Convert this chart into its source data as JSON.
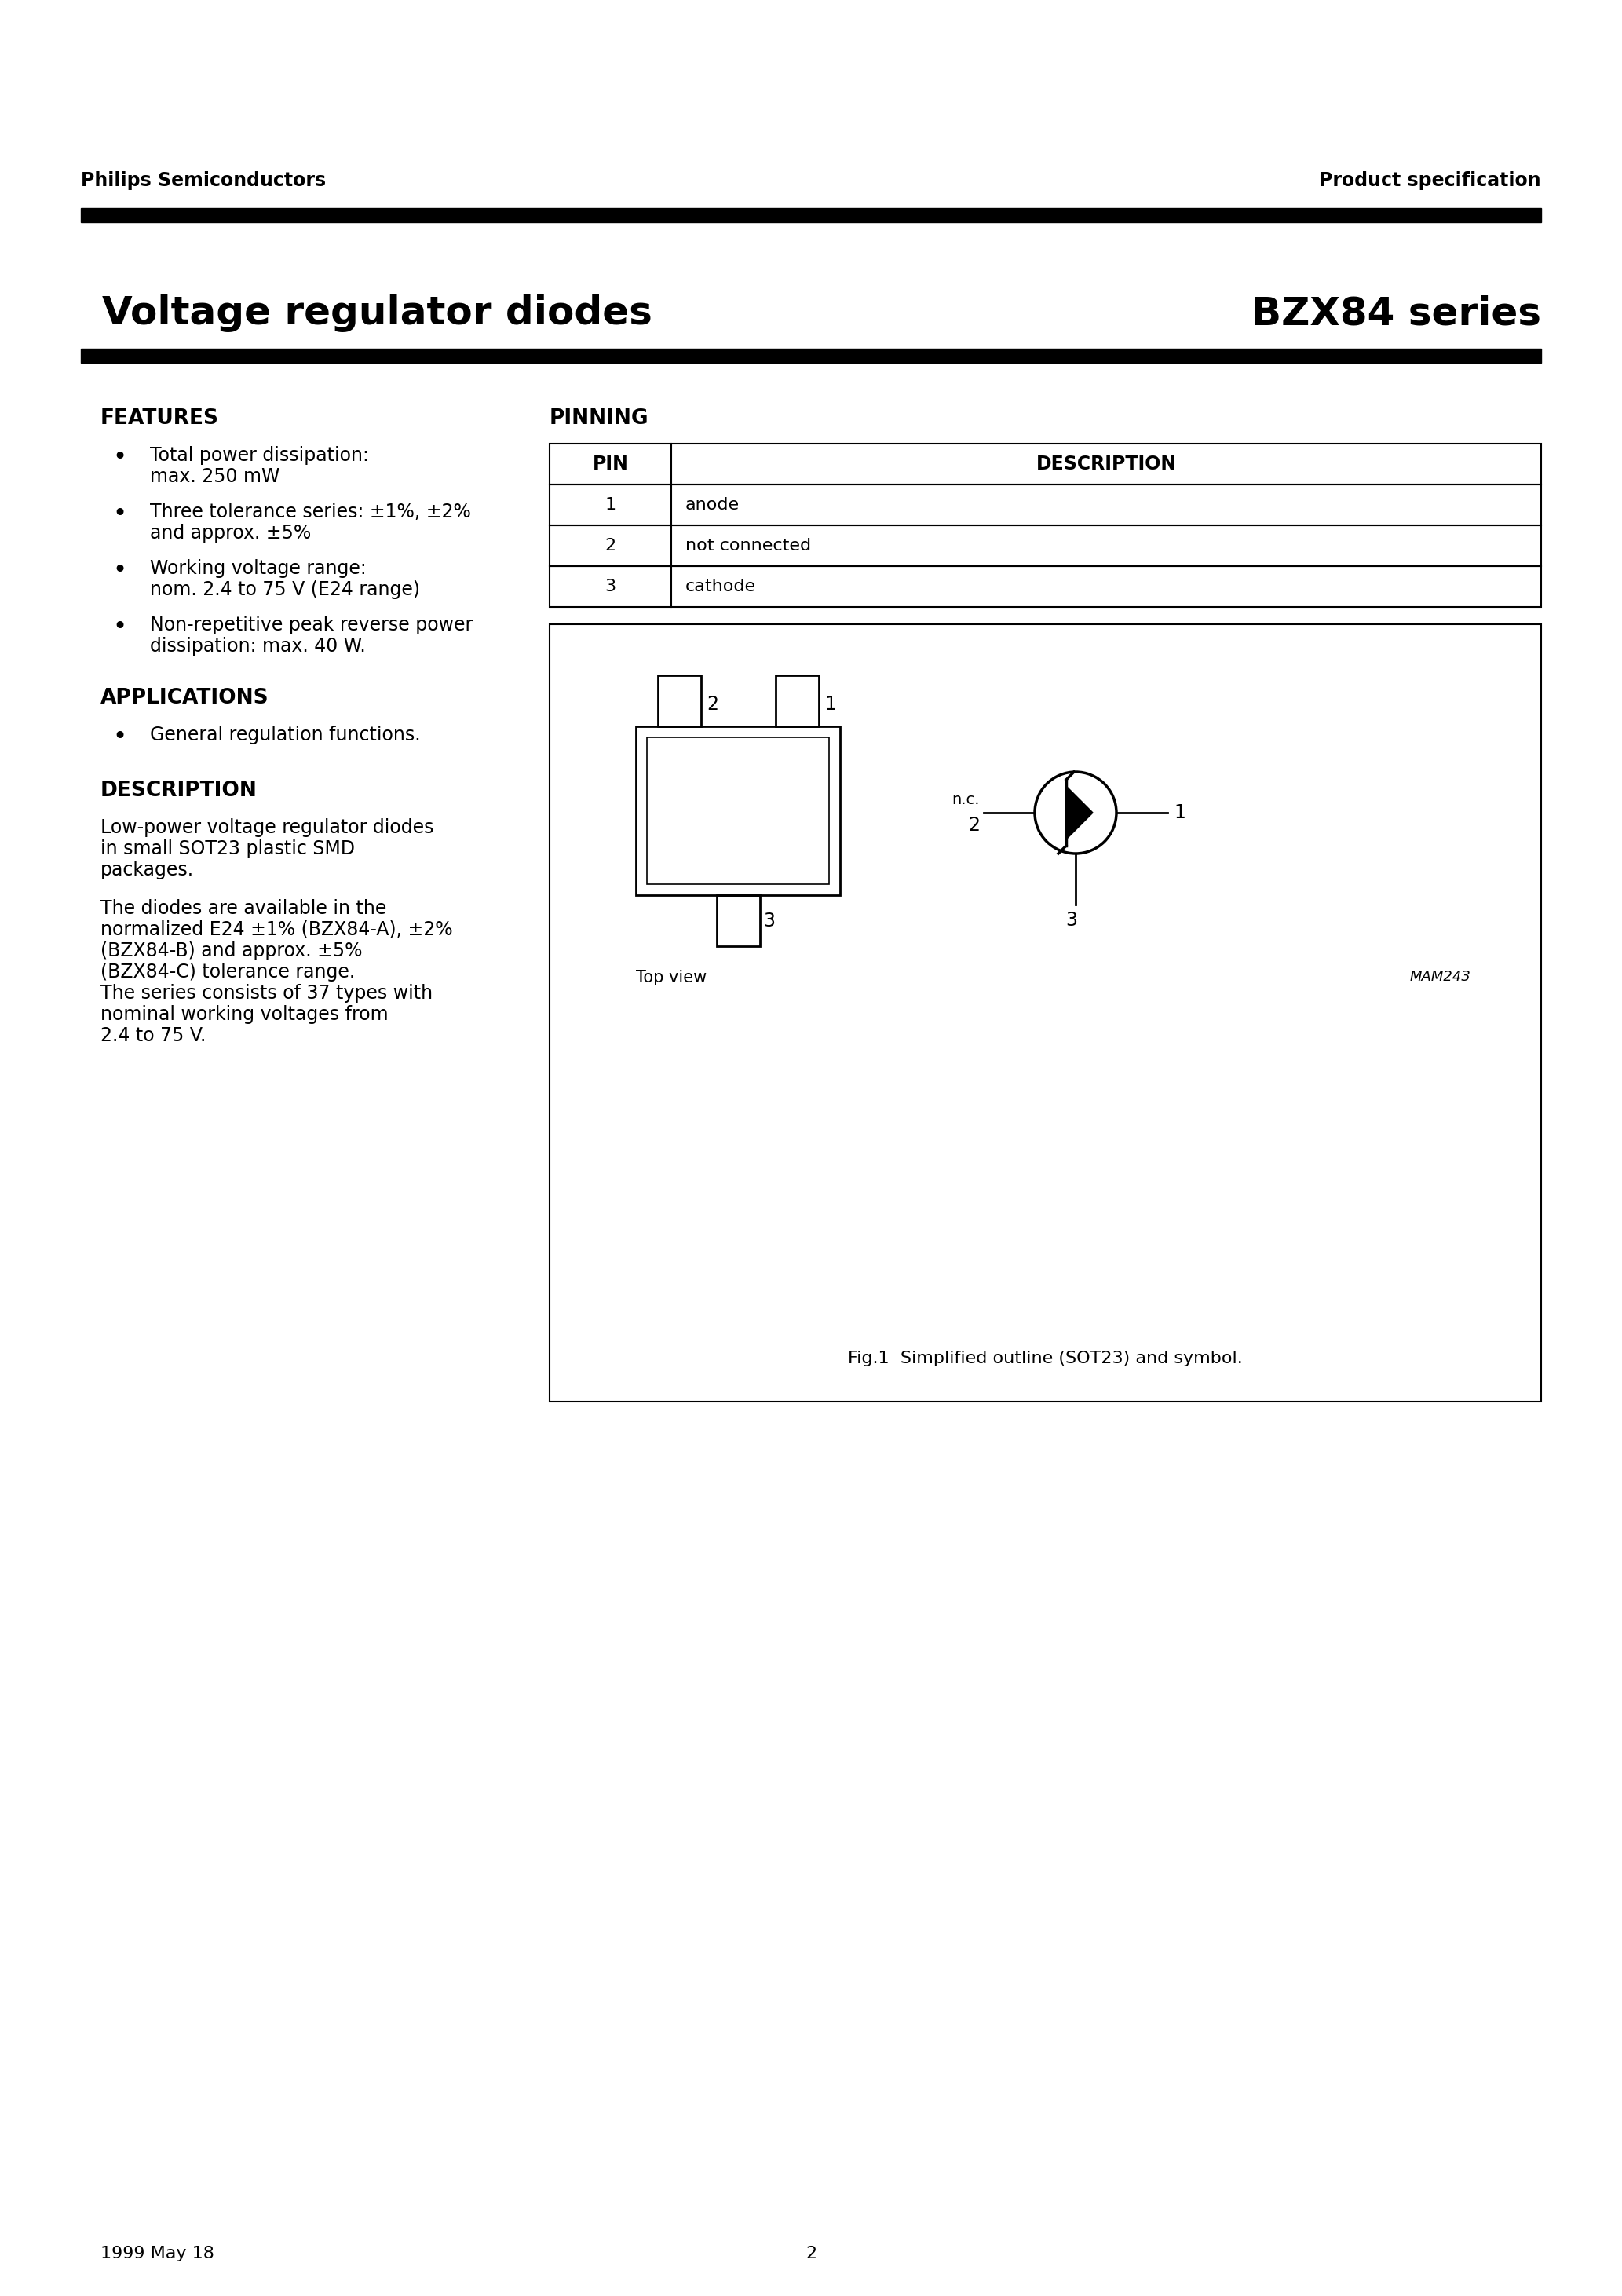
{
  "page_title_left": "Voltage regulator diodes",
  "page_title_right": "BZX84 series",
  "header_left": "Philips Semiconductors",
  "header_right": "Product specification",
  "footer_left": "1999 May 18",
  "footer_center": "2",
  "features_title": "FEATURES",
  "features_bullets": [
    [
      "Total power dissipation:",
      "max. 250 mW"
    ],
    [
      "Three tolerance series: ±1%, ±2%",
      "and approx. ±5%"
    ],
    [
      "Working voltage range:",
      "nom. 2.4 to 75 V (E24 range)"
    ],
    [
      "Non-repetitive peak reverse power",
      "dissipation: max. 40 W."
    ]
  ],
  "applications_title": "APPLICATIONS",
  "applications_bullets": [
    [
      "General regulation functions."
    ]
  ],
  "description_title": "DESCRIPTION",
  "description_para1": [
    "Low-power voltage regulator diodes",
    "in small SOT23 plastic SMD",
    "packages."
  ],
  "description_para2": [
    "The diodes are available in the",
    "normalized E24 ±1% (BZX84-A), ±2%",
    "(BZX84-B) and approx. ±5%",
    "(BZX84-C) tolerance range.",
    "The series consists of 37 types with",
    "nominal working voltages from",
    "2.4 to 75 V."
  ],
  "pinning_title": "PINNING",
  "pin_table_headers": [
    "PIN",
    "DESCRIPTION"
  ],
  "pin_table_rows": [
    [
      "1",
      "anode"
    ],
    [
      "2",
      "not connected"
    ],
    [
      "3",
      "cathode"
    ]
  ],
  "fig_caption": "Fig.1  Simplified outline (SOT23) and symbol.",
  "mam_label": "MAM243",
  "top_view_label": "Top view",
  "bg_color": "#ffffff",
  "text_color": "#000000",
  "bar_color": "#000000"
}
